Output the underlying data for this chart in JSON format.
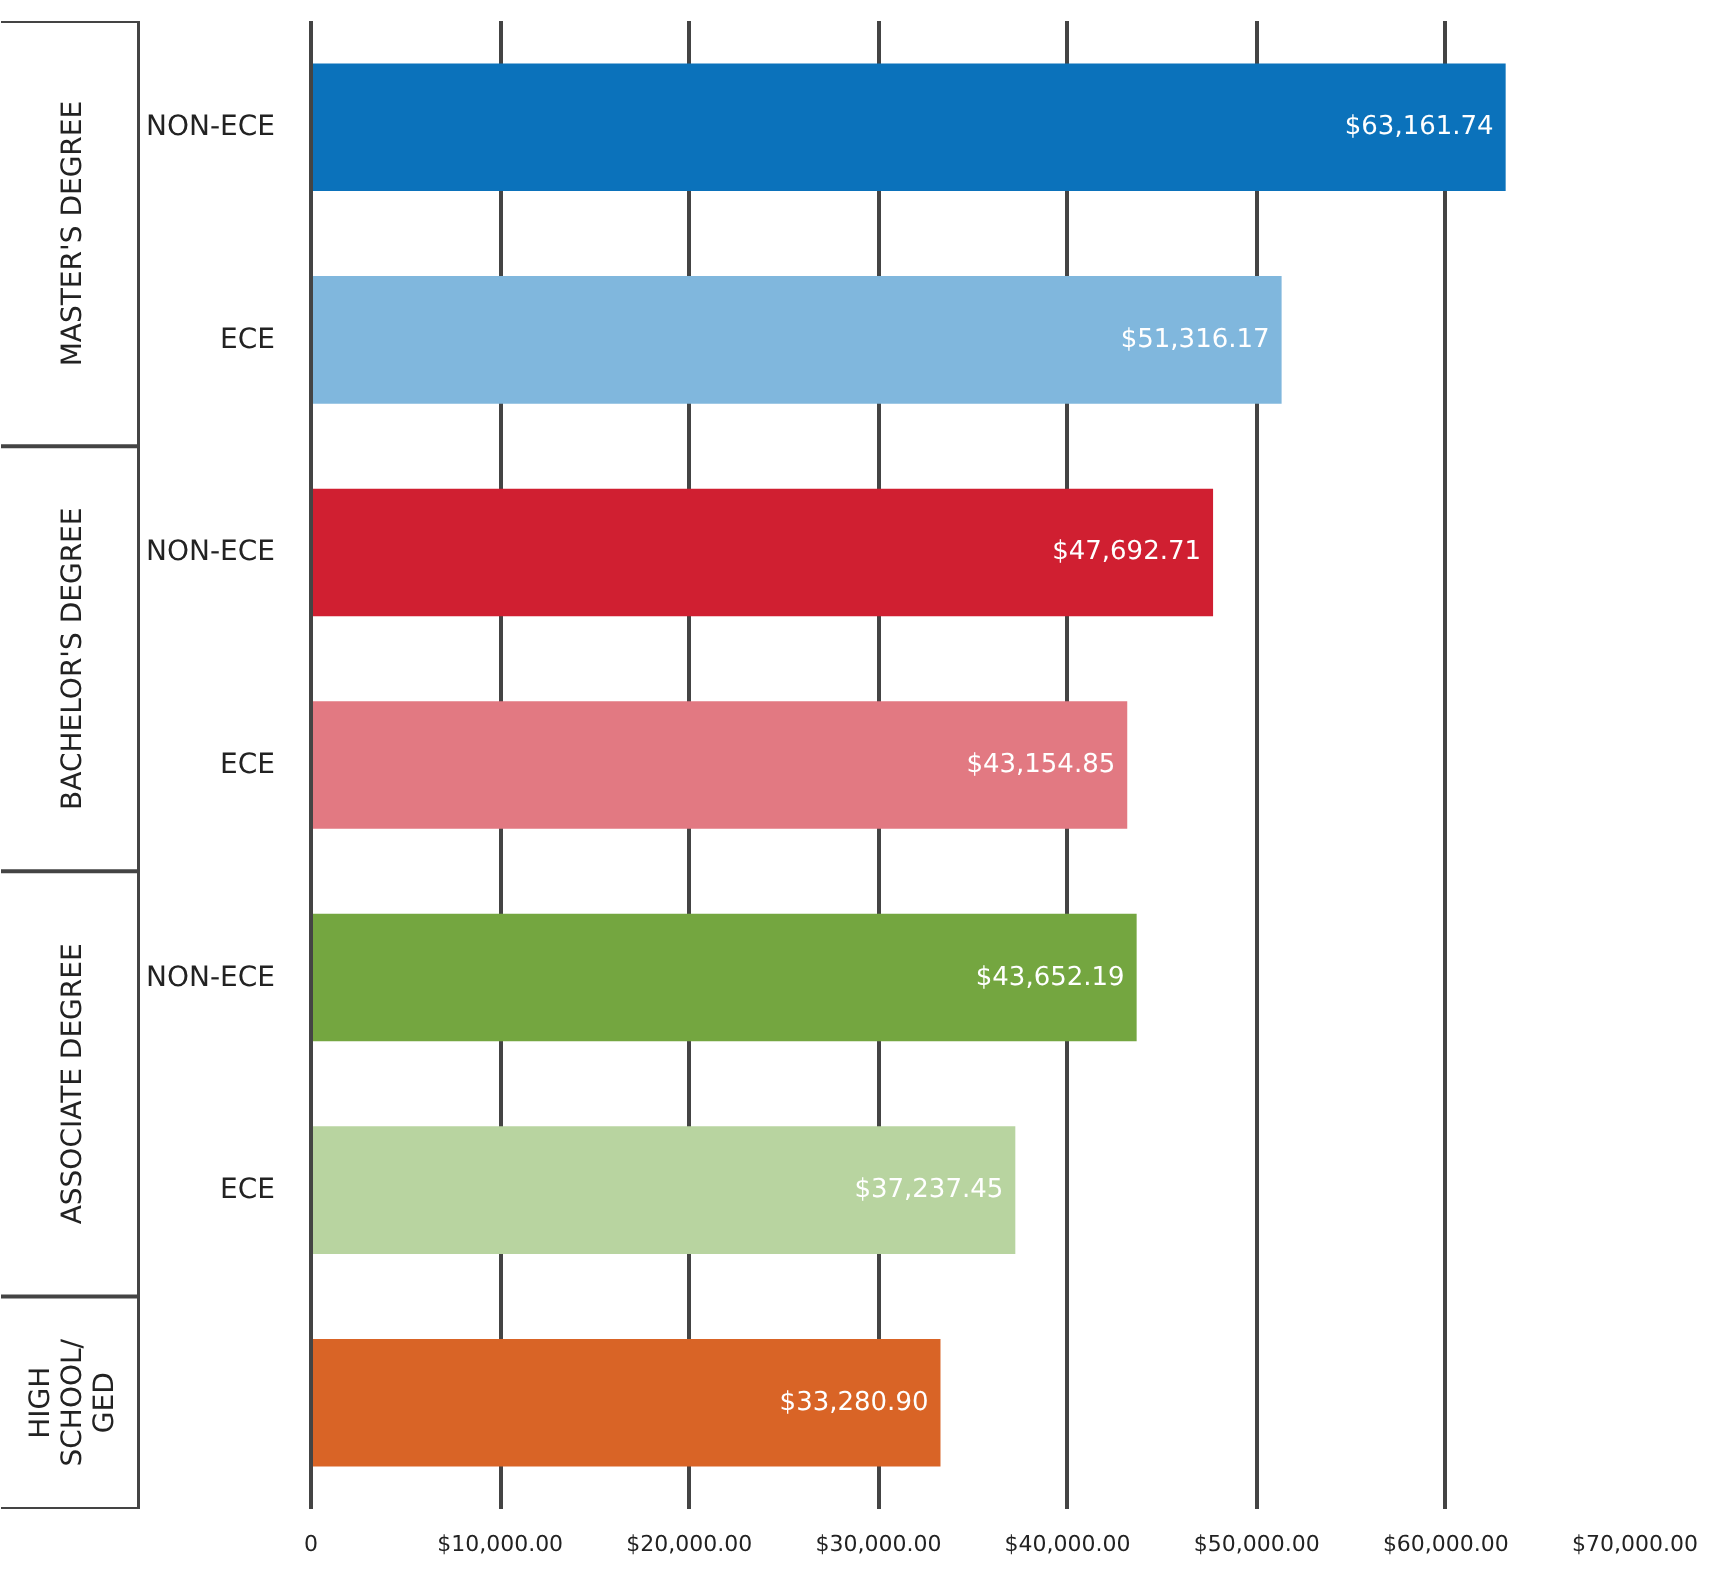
{
  "chart_data": {
    "type": "bar",
    "orientation": "horizontal",
    "categories": [
      "NON-ECE",
      "ECE",
      "NON-ECE",
      "ECE",
      "NON-ECE",
      "ECE",
      null
    ],
    "values": [
      63161.74,
      51316.17,
      47692.71,
      43154.85,
      43652.19,
      37237.45,
      33280.9
    ],
    "colors": [
      "#0b72bb",
      "#80b7dd",
      "#d01f31",
      "#e27982",
      "#74a640",
      "#b8d4a0",
      "#d96426"
    ],
    "value_labels": [
      "$63,161.74",
      "$51,316.17",
      "$47,692.71",
      "$43,154.85",
      "$43,652.19",
      "$37,237.45",
      "$33,280.90"
    ],
    "annotations": [
      "MASTER'S DEGREE",
      "BACHELOR'S DEGREE",
      "ASSOCIATE DEGREE",
      "HIGH SCHOOL/\nGED"
    ],
    "xlim": [
      0,
      70000
    ],
    "xticks": [
      {
        "value": 0,
        "label": "0"
      },
      {
        "value": 10000,
        "label": "$10,000.00"
      },
      {
        "value": 20000,
        "label": "$20,000.00"
      },
      {
        "value": 30000,
        "label": "$30,000.00"
      },
      {
        "value": 40000,
        "label": "$40,000.00"
      },
      {
        "value": 50000,
        "label": "$50,000.00"
      },
      {
        "value": 60000,
        "label": "$60,000.00"
      },
      {
        "value": 70000,
        "label": "$70,000.00"
      }
    ],
    "grid": "x",
    "legend": false
  }
}
